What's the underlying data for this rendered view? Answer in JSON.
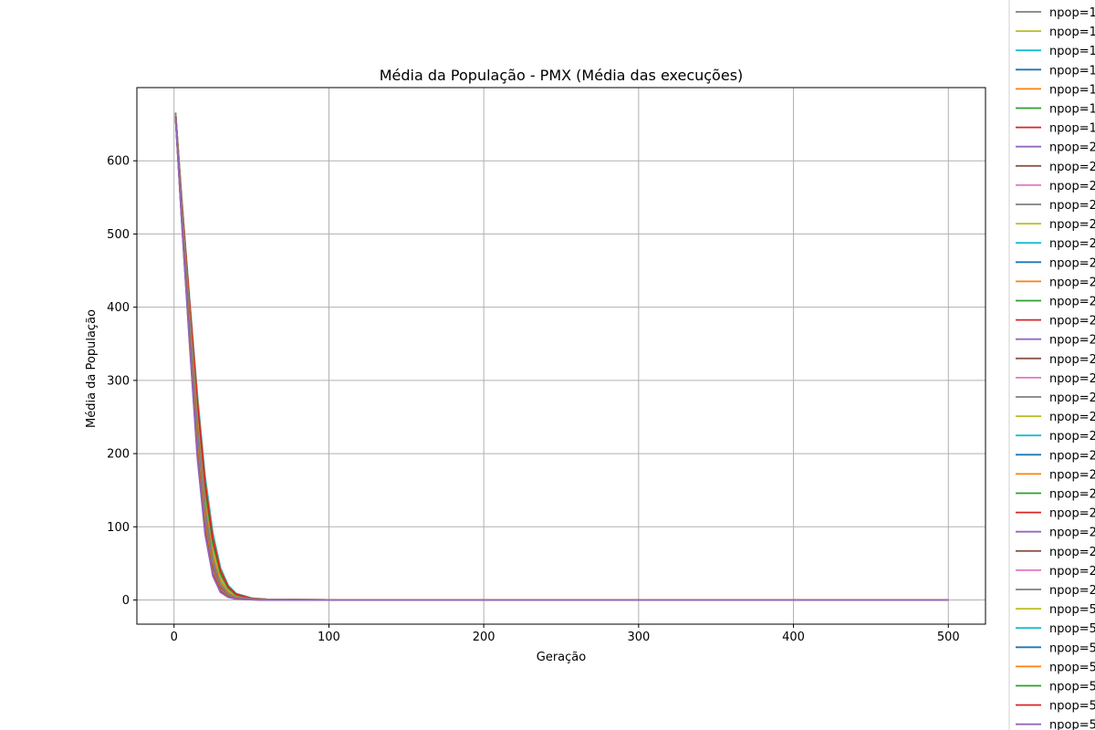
{
  "chart_data": {
    "type": "line",
    "title": "Média da População - PMX (Média das execuções)",
    "xlabel": "Geração",
    "ylabel": "Média da População",
    "xlim": [
      -24,
      524
    ],
    "ylim": [
      -33,
      700
    ],
    "xticks": [
      0,
      100,
      200,
      300,
      400,
      500
    ],
    "xtick_labels": [
      "0",
      "100",
      "200",
      "300",
      "400",
      "500"
    ],
    "yticks": [
      0,
      100,
      200,
      300,
      400,
      500,
      600
    ],
    "ytick_labels": [
      "0",
      "100",
      "200",
      "300",
      "400",
      "500",
      "600"
    ],
    "grid": true,
    "legend_position": "outside-right (clipped)",
    "x": [
      1,
      5,
      10,
      15,
      20,
      25,
      30,
      35,
      40,
      50,
      60,
      80,
      100,
      200,
      300,
      400,
      500
    ],
    "series": [
      {
        "name": "npop=1",
        "color": "#7f7f7f",
        "values": [
          665,
          540,
          400,
          260,
          145,
          72,
          32,
          14,
          6,
          1.8,
          0.7,
          0.3,
          0.2,
          0.1,
          0.1,
          0.1,
          0.1
        ]
      },
      {
        "name": "npop=1",
        "color": "#bcbd22",
        "values": [
          662,
          535,
          395,
          255,
          140,
          68,
          30,
          13,
          5.5,
          1.6,
          0.6,
          0.3,
          0.2,
          0.1,
          0.1,
          0.1,
          0.1
        ]
      },
      {
        "name": "npop=1",
        "color": "#17becf",
        "values": [
          666,
          548,
          412,
          282,
          170,
          92,
          44,
          20,
          9,
          2.5,
          0.9,
          0.4,
          0.2,
          0.1,
          0.1,
          0.1,
          0.1
        ]
      },
      {
        "name": "npop=1",
        "color": "#1f77b4",
        "values": [
          664,
          542,
          405,
          270,
          158,
          82,
          38,
          17,
          7.5,
          2.2,
          0.8,
          0.3,
          0.2,
          0.1,
          0.1,
          0.1,
          0.1
        ]
      },
      {
        "name": "npop=1",
        "color": "#ff7f0e",
        "values": [
          664,
          545,
          408,
          276,
          162,
          86,
          41,
          18,
          8,
          2.3,
          0.8,
          0.3,
          0.2,
          0.1,
          0.1,
          0.1,
          0.1
        ]
      },
      {
        "name": "npop=1",
        "color": "#2ca02c",
        "values": [
          663,
          540,
          402,
          266,
          152,
          78,
          36,
          16,
          7,
          2,
          0.7,
          0.3,
          0.2,
          0.1,
          0.1,
          0.1,
          0.1
        ]
      },
      {
        "name": "npop=1",
        "color": "#d62728",
        "values": [
          665,
          543,
          406,
          272,
          160,
          84,
          40,
          18,
          8,
          2.2,
          0.8,
          0.3,
          0.2,
          0.1,
          0.1,
          0.1,
          0.1
        ]
      },
      {
        "name": "npop=2",
        "color": "#9467bd",
        "values": [
          662,
          525,
          370,
          220,
          110,
          45,
          16,
          6,
          2.5,
          0.8,
          0.3,
          0.1,
          0,
          0,
          0,
          0,
          0
        ]
      },
      {
        "name": "npop=2",
        "color": "#8c564b",
        "values": [
          662,
          528,
          378,
          228,
          116,
          50,
          19,
          7,
          3,
          1,
          0.4,
          0.1,
          0,
          0,
          0,
          0,
          0
        ]
      },
      {
        "name": "npop=2",
        "color": "#e377c2",
        "values": [
          663,
          530,
          382,
          232,
          120,
          52,
          20,
          8,
          3,
          1,
          0.4,
          0.1,
          0,
          0,
          0,
          0,
          0
        ]
      },
      {
        "name": "npop=2",
        "color": "#7f7f7f",
        "values": [
          663,
          532,
          385,
          238,
          125,
          55,
          22,
          9,
          3.5,
          1.1,
          0.4,
          0.1,
          0,
          0,
          0,
          0,
          0
        ]
      },
      {
        "name": "npop=2",
        "color": "#bcbd22",
        "values": [
          663,
          531,
          383,
          235,
          122,
          54,
          21,
          8,
          3.2,
          1,
          0.4,
          0.1,
          0,
          0,
          0,
          0,
          0
        ]
      },
      {
        "name": "npop=2",
        "color": "#17becf",
        "values": [
          664,
          534,
          388,
          242,
          128,
          58,
          24,
          10,
          4,
          1.2,
          0.4,
          0.1,
          0,
          0,
          0,
          0,
          0
        ]
      },
      {
        "name": "npop=2",
        "color": "#1f77b4",
        "values": [
          663,
          529,
          380,
          230,
          118,
          51,
          20,
          7.5,
          3,
          1,
          0.4,
          0.1,
          0,
          0,
          0,
          0,
          0
        ]
      },
      {
        "name": "npop=2",
        "color": "#ff7f0e",
        "values": [
          664,
          535,
          390,
          245,
          130,
          60,
          25,
          10,
          4,
          1.3,
          0.5,
          0.1,
          0,
          0,
          0,
          0,
          0
        ]
      },
      {
        "name": "npop=2",
        "color": "#2ca02c",
        "values": [
          663,
          530,
          381,
          231,
          119,
          52,
          20,
          8,
          3,
          1,
          0.4,
          0.1,
          0,
          0,
          0,
          0,
          0
        ]
      },
      {
        "name": "npop=2",
        "color": "#d62728",
        "values": [
          662,
          527,
          375,
          226,
          114,
          48,
          18,
          7,
          2.8,
          0.9,
          0.3,
          0.1,
          0,
          0,
          0,
          0,
          0
        ]
      },
      {
        "name": "npop=2",
        "color": "#9467bd",
        "values": [
          661,
          522,
          365,
          215,
          106,
          42,
          15,
          5.5,
          2.2,
          0.7,
          0.3,
          0.1,
          0,
          0,
          0,
          0,
          0
        ]
      },
      {
        "name": "npop=2",
        "color": "#8c564b",
        "values": [
          662,
          526,
          373,
          224,
          112,
          47,
          17,
          6.5,
          2.6,
          0.8,
          0.3,
          0.1,
          0,
          0,
          0,
          0,
          0
        ]
      },
      {
        "name": "npop=2",
        "color": "#e377c2",
        "values": [
          663,
          531,
          384,
          236,
          123,
          54,
          21,
          8.5,
          3.3,
          1,
          0.4,
          0.1,
          0,
          0,
          0,
          0,
          0
        ]
      },
      {
        "name": "npop=2",
        "color": "#7f7f7f",
        "values": [
          663,
          532,
          386,
          239,
          126,
          56,
          22,
          9,
          3.6,
          1.1,
          0.4,
          0.1,
          0,
          0,
          0,
          0,
          0
        ]
      },
      {
        "name": "npop=2",
        "color": "#bcbd22",
        "values": [
          664,
          533,
          387,
          240,
          127,
          57,
          23,
          9.5,
          3.8,
          1.2,
          0.4,
          0.1,
          0,
          0,
          0,
          0,
          0
        ]
      },
      {
        "name": "npop=2",
        "color": "#17becf",
        "values": [
          664,
          536,
          392,
          248,
          133,
          62,
          26,
          11,
          4.4,
          1.4,
          0.5,
          0.1,
          0,
          0,
          0,
          0,
          0
        ]
      },
      {
        "name": "npop=2",
        "color": "#1f77b4",
        "values": [
          663,
          530,
          382,
          233,
          121,
          53,
          21,
          8,
          3.1,
          1,
          0.4,
          0.1,
          0,
          0,
          0,
          0,
          0
        ]
      },
      {
        "name": "npop=2",
        "color": "#ff7f0e",
        "values": [
          664,
          535,
          391,
          246,
          131,
          61,
          25,
          10.5,
          4.2,
          1.3,
          0.5,
          0.1,
          0,
          0,
          0,
          0,
          0
        ]
      },
      {
        "name": "npop=2",
        "color": "#2ca02c",
        "values": [
          663,
          531,
          384,
          236,
          123,
          54,
          21,
          8.4,
          3.3,
          1,
          0.4,
          0.1,
          0,
          0,
          0,
          0,
          0
        ]
      },
      {
        "name": "npop=2",
        "color": "#d62728",
        "values": [
          662,
          528,
          377,
          228,
          116,
          49,
          19,
          7.2,
          2.9,
          0.9,
          0.3,
          0.1,
          0,
          0,
          0,
          0,
          0
        ]
      },
      {
        "name": "npop=2",
        "color": "#9467bd",
        "values": [
          661,
          523,
          367,
          217,
          108,
          43,
          15.5,
          5.8,
          2.3,
          0.7,
          0.3,
          0.1,
          0,
          0,
          0,
          0,
          0
        ]
      },
      {
        "name": "npop=2",
        "color": "#8c564b",
        "values": [
          662,
          527,
          376,
          227,
          115,
          49,
          18.5,
          7,
          2.8,
          0.9,
          0.3,
          0.1,
          0,
          0,
          0,
          0,
          0
        ]
      },
      {
        "name": "npop=2",
        "color": "#e377c2",
        "values": [
          663,
          530,
          382,
          233,
          121,
          53,
          20.5,
          8,
          3.1,
          1,
          0.4,
          0.1,
          0,
          0,
          0,
          0,
          0
        ]
      },
      {
        "name": "npop=2",
        "color": "#7f7f7f",
        "values": [
          663,
          531,
          384,
          235,
          123,
          54,
          21,
          8.2,
          3.2,
          1,
          0.4,
          0.1,
          0,
          0,
          0,
          0,
          0
        ]
      },
      {
        "name": "npop=5",
        "color": "#bcbd22",
        "values": [
          660,
          518,
          355,
          200,
          95,
          36,
          12,
          4.2,
          1.6,
          0.5,
          0.2,
          0,
          0,
          0,
          0,
          0,
          0
        ]
      },
      {
        "name": "npop=5",
        "color": "#17becf",
        "values": [
          660,
          519,
          357,
          203,
          97,
          37,
          12.5,
          4.4,
          1.7,
          0.5,
          0.2,
          0,
          0,
          0,
          0,
          0,
          0
        ]
      },
      {
        "name": "npop=5",
        "color": "#1f77b4",
        "values": [
          661,
          520,
          359,
          205,
          99,
          38,
          13,
          4.6,
          1.8,
          0.5,
          0.2,
          0,
          0,
          0,
          0,
          0,
          0
        ]
      },
      {
        "name": "npop=5",
        "color": "#ff7f0e",
        "values": [
          661,
          521,
          361,
          208,
          101,
          39,
          13.5,
          4.8,
          1.9,
          0.6,
          0.2,
          0,
          0,
          0,
          0,
          0,
          0
        ]
      },
      {
        "name": "npop=5",
        "color": "#2ca02c",
        "values": [
          660,
          518,
          356,
          202,
          96,
          36.5,
          12.2,
          4.3,
          1.6,
          0.5,
          0.2,
          0,
          0,
          0,
          0,
          0,
          0
        ]
      },
      {
        "name": "npop=5",
        "color": "#d62728",
        "values": [
          660,
          517,
          354,
          199,
          94,
          35.5,
          11.8,
          4.1,
          1.5,
          0.5,
          0.2,
          0,
          0,
          0,
          0,
          0,
          0
        ]
      },
      {
        "name": "npop=5",
        "color": "#9467bd",
        "values": [
          659,
          515,
          350,
          195,
          90,
          33,
          10.5,
          3.6,
          1.3,
          0.4,
          0.1,
          0,
          0,
          0,
          0,
          0,
          0
        ]
      }
    ]
  }
}
